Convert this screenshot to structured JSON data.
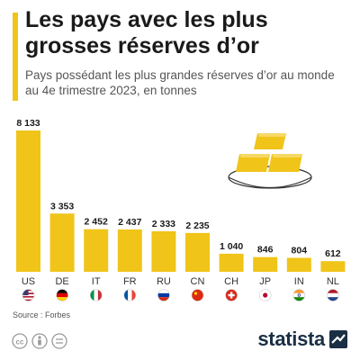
{
  "header": {
    "title": "Les pays avec les plus grosses réserves d’or",
    "subtitle": "Pays possédant les plus grandes réserves d’or au monde au 4e trimestre 2023, en tonnes"
  },
  "footer": {
    "source": "Source : Forbes",
    "brand": "statista"
  },
  "colors": {
    "bar": "#F0C419",
    "accent": "#F0C419",
    "text": "#1a1a1a",
    "brand": "#1a2e44"
  },
  "chart_data": {
    "type": "bar",
    "title": "",
    "xlabel": "",
    "ylabel": "",
    "ylim": [
      0,
      8133
    ],
    "grid": false,
    "categories": [
      "US",
      "DE",
      "IT",
      "FR",
      "RU",
      "CN",
      "CH",
      "JP",
      "IN",
      "NL"
    ],
    "values": [
      8133,
      3353,
      2452,
      2437,
      2333,
      2235,
      1040,
      846,
      804,
      612
    ],
    "value_labels": [
      "8 133",
      "3 353",
      "2 452",
      "2 437",
      "2 333",
      "2 235",
      "1 040",
      "846",
      "804",
      "612"
    ],
    "flag_icons": [
      "us-flag-icon",
      "de-flag-icon",
      "it-flag-icon",
      "fr-flag-icon",
      "ru-flag-icon",
      "cn-flag-icon",
      "ch-flag-icon",
      "jp-flag-icon",
      "in-flag-icon",
      "nl-flag-icon"
    ]
  }
}
